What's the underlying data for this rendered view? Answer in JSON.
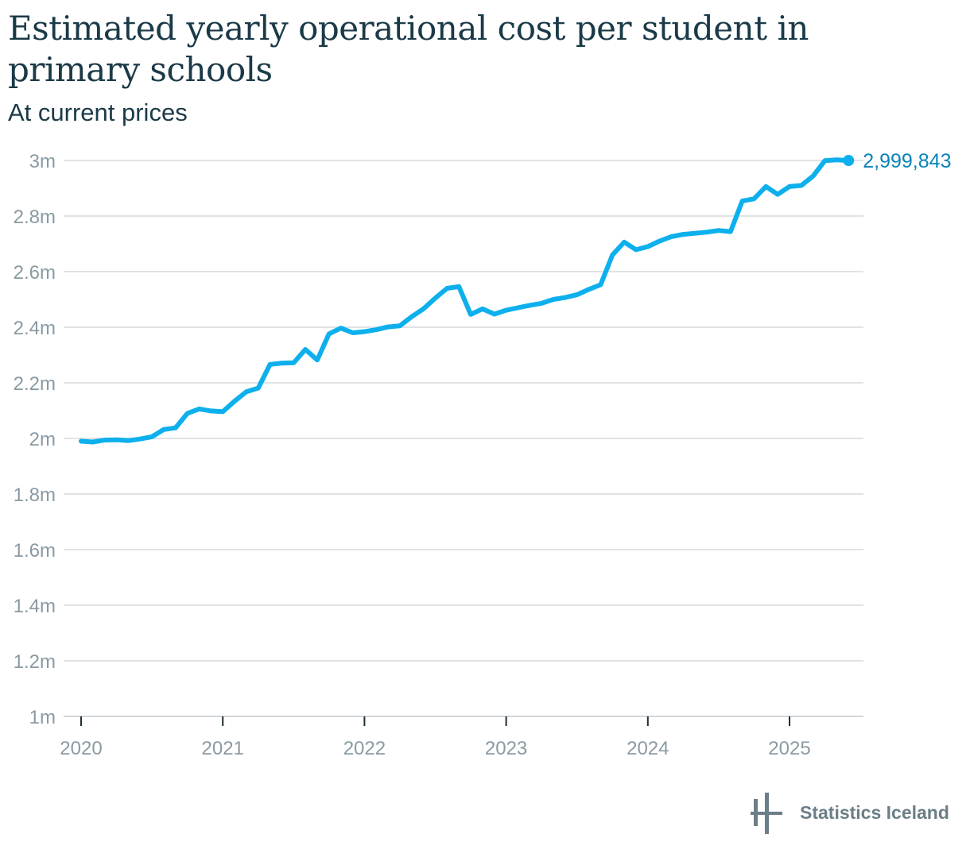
{
  "title": "Estimated yearly operational cost per student in primary schools",
  "subtitle": "At current prices",
  "colors": {
    "line": "#0db0ec",
    "end_label": "#0a84ba",
    "grid": "#dfe3e6",
    "axis_text": "#8a9aa3",
    "title": "#1b3a48"
  },
  "logo": {
    "text": "Statistics Iceland",
    "icon": "statistics-iceland-logo-icon"
  },
  "end_label": "2,999,843",
  "chart_data": {
    "type": "line",
    "title": "Estimated yearly operational cost per student in primary schools",
    "subtitle": "At current prices",
    "xlabel": "",
    "ylabel": "",
    "grid": true,
    "ylim": [
      1000000,
      3000000
    ],
    "xlim": [
      "2020-01",
      "2025-06"
    ],
    "y_ticks": [
      1000000,
      1200000,
      1400000,
      1600000,
      1800000,
      2000000,
      2200000,
      2400000,
      2600000,
      2800000,
      3000000
    ],
    "y_tick_labels": [
      "1m",
      "1.2m",
      "1.4m",
      "1.6m",
      "1.8m",
      "2m",
      "2.2m",
      "2.4m",
      "2.6m",
      "2.8m",
      "3m"
    ],
    "x_ticks": [
      "2020-01",
      "2021-01",
      "2022-01",
      "2023-01",
      "2024-01",
      "2025-01"
    ],
    "x_tick_labels": [
      "2020",
      "2021",
      "2022",
      "2023",
      "2024",
      "2025"
    ],
    "series": [
      {
        "x": [
          "2020-01",
          "2020-02",
          "2020-03",
          "2020-04",
          "2020-05",
          "2020-06",
          "2020-07",
          "2020-08",
          "2020-09",
          "2020-10",
          "2020-11",
          "2020-12",
          "2021-01",
          "2021-02",
          "2021-03",
          "2021-04",
          "2021-05",
          "2021-06",
          "2021-07",
          "2021-08",
          "2021-09",
          "2021-10",
          "2021-11",
          "2021-12",
          "2022-01",
          "2022-02",
          "2022-03",
          "2022-04",
          "2022-05",
          "2022-06",
          "2022-07",
          "2022-08",
          "2022-09",
          "2022-10",
          "2022-11",
          "2022-12",
          "2023-01",
          "2023-02",
          "2023-03",
          "2023-04",
          "2023-05",
          "2023-06",
          "2023-07",
          "2023-08",
          "2023-09",
          "2023-10",
          "2023-11",
          "2023-12",
          "2024-01",
          "2024-02",
          "2024-03",
          "2024-04",
          "2024-05",
          "2024-06",
          "2024-07",
          "2024-08",
          "2024-09",
          "2024-10",
          "2024-11",
          "2024-12",
          "2025-01",
          "2025-02",
          "2025-03",
          "2025-04",
          "2025-05",
          "2025-06"
        ],
        "values": [
          1990000,
          1987000,
          1994000,
          1995000,
          1992000,
          1998000,
          2006000,
          2032000,
          2038000,
          2090000,
          2106000,
          2099000,
          2096000,
          2134000,
          2168000,
          2181000,
          2266000,
          2271000,
          2272000,
          2320000,
          2282000,
          2376000,
          2397000,
          2380000,
          2384000,
          2391000,
          2401000,
          2405000,
          2438000,
          2466000,
          2505000,
          2540000,
          2546000,
          2446000,
          2466000,
          2447000,
          2461000,
          2470000,
          2479000,
          2486000,
          2500000,
          2507000,
          2517000,
          2536000,
          2553000,
          2660000,
          2706000,
          2679000,
          2690000,
          2710000,
          2726000,
          2734000,
          2738000,
          2742000,
          2748000,
          2744000,
          2854000,
          2862000,
          2906000,
          2878000,
          2906000,
          2910000,
          2944000,
          2999000,
          3002000,
          2999843
        ]
      }
    ]
  }
}
